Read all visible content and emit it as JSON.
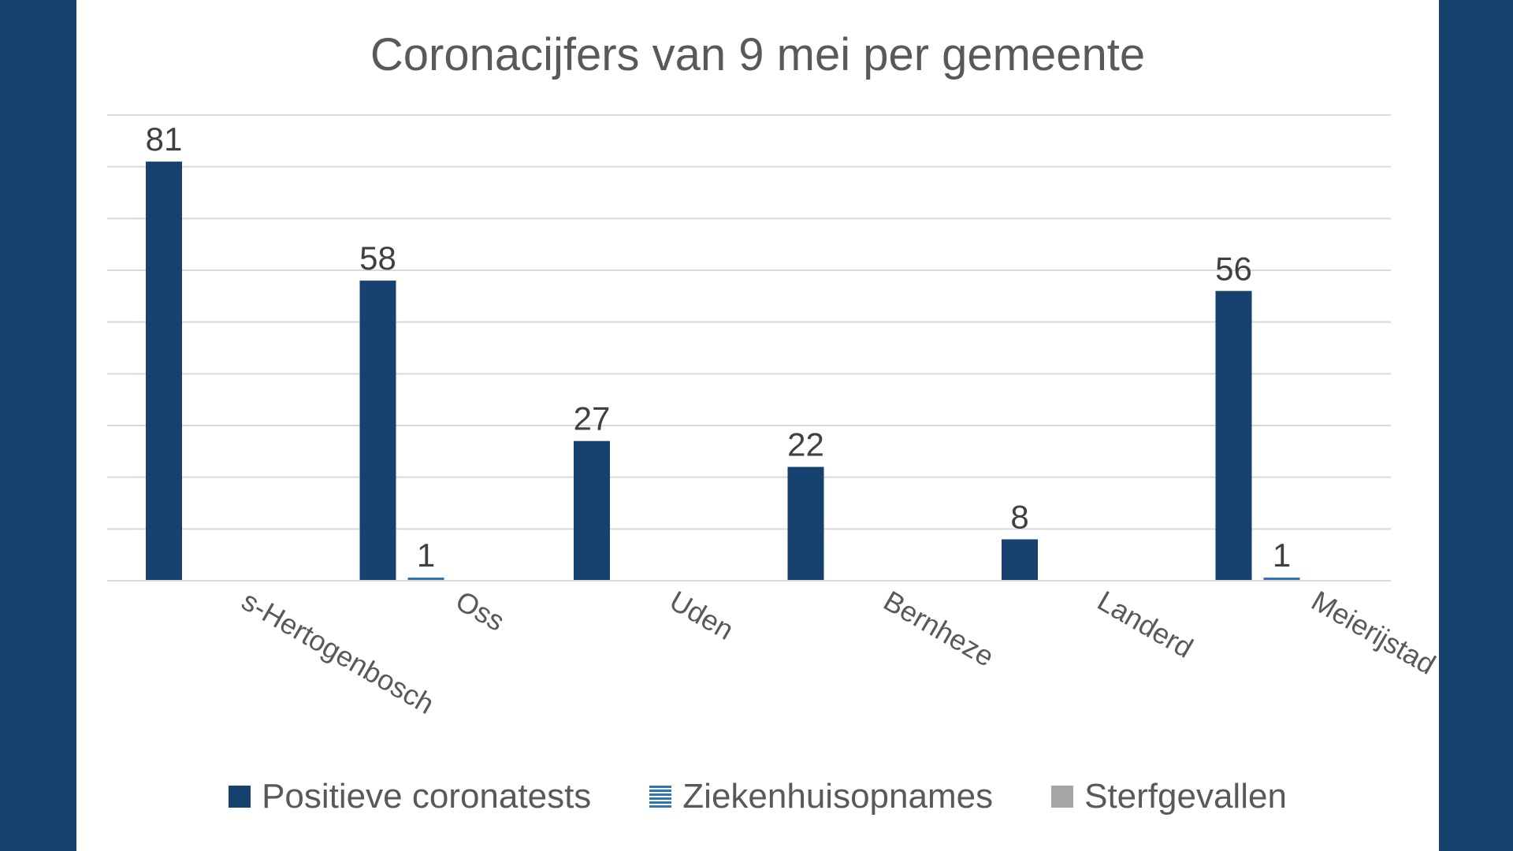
{
  "chart_data": {
    "type": "bar",
    "title": "Coronacijfers van 9 mei per gemeente",
    "xlabel": "",
    "ylabel": "",
    "ylim": [
      0,
      90
    ],
    "grid": true,
    "legend_position": "bottom",
    "categories": [
      "s-Hertogenbosch",
      "Oss",
      "Uden",
      "Bernheze",
      "Landerd",
      "Meierijstad"
    ],
    "series": [
      {
        "name": "Positieve coronatests",
        "values": [
          81,
          58,
          27,
          22,
          8,
          56
        ],
        "color": "#17426f"
      },
      {
        "name": "Ziekenhuisopnames",
        "values": [
          0,
          1,
          0,
          0,
          0,
          1
        ],
        "color": "#2e75b6"
      },
      {
        "name": "Sterfgevallen",
        "values": [
          0,
          0,
          0,
          0,
          0,
          0
        ],
        "color": "#a5a5a5"
      }
    ],
    "data_labels": {
      "Positieve coronatests": [
        "81",
        "58",
        "27",
        "22",
        "8",
        "56"
      ],
      "Ziekenhuisopnames": [
        "",
        "1",
        "",
        "",
        "",
        "1"
      ],
      "Sterfgevallen": [
        "",
        "",
        "",
        "",
        "",
        ""
      ]
    }
  }
}
